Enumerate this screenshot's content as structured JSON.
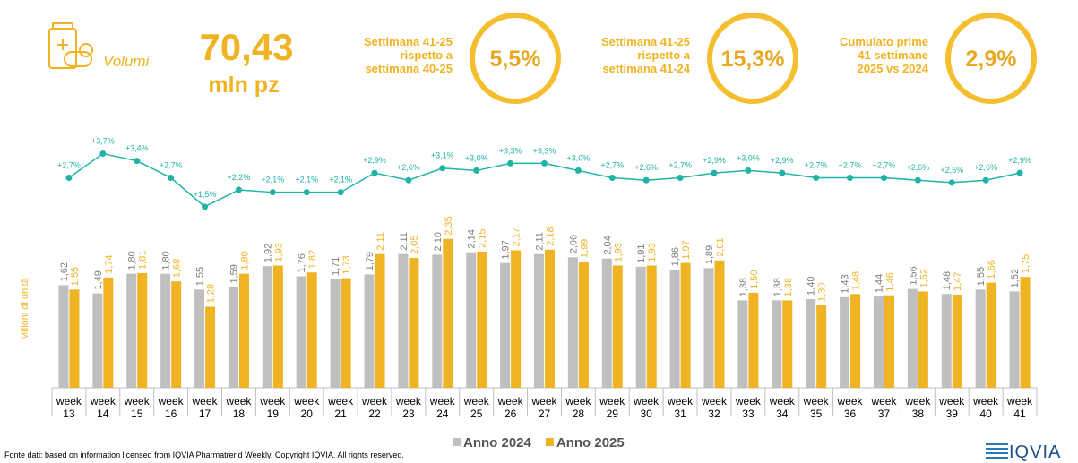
{
  "header": {
    "kpi": {
      "label": "Volumi",
      "value": "70,43",
      "unit": "mln pz"
    },
    "comparisons": [
      {
        "lines": [
          "Settimana 41-25",
          "rispetto a",
          "settimana 40-25"
        ],
        "value": "5,5%"
      },
      {
        "lines": [
          "Settimana 41-25",
          "rispetto a",
          "settimana 41-24"
        ],
        "value": "15,3%"
      },
      {
        "lines": [
          "Cumulato prime",
          "41 settimane",
          "2025 vs 2024"
        ],
        "value": "2,9%"
      }
    ]
  },
  "chart_data": {
    "type": "bar",
    "y_label": "Milioni di unità",
    "categories": [
      "week 13",
      "week 14",
      "week 15",
      "week 16",
      "week 17",
      "week 18",
      "week 19",
      "week 20",
      "week 21",
      "week 22",
      "week 23",
      "week 24",
      "week 25",
      "week 26",
      "week 27",
      "week 28",
      "week 29",
      "week 30",
      "week 31",
      "week 32",
      "week 33",
      "week 34",
      "week 35",
      "week 36",
      "week 37",
      "week 38",
      "week 39",
      "week 40",
      "week 41"
    ],
    "ylim": [
      0,
      4
    ],
    "y2lim": [
      -6,
      4.5
    ],
    "series": [
      {
        "name": "Anno 2024",
        "color": "#bfbfbf",
        "values": [
          1.62,
          1.49,
          1.8,
          1.8,
          1.55,
          1.59,
          1.92,
          1.76,
          1.71,
          1.79,
          2.11,
          2.1,
          2.14,
          1.97,
          2.11,
          2.06,
          2.04,
          1.91,
          1.86,
          1.89,
          1.38,
          1.38,
          1.4,
          1.43,
          1.44,
          1.56,
          1.48,
          1.55,
          1.52
        ],
        "value_labels": [
          "1,62",
          "1,49",
          "1,80",
          "1,80",
          "1,55",
          "1,59",
          "1,92",
          "1,76",
          "1,71",
          "1,79",
          "2,11",
          "2,10",
          "2,14",
          "1,97",
          "2,11",
          "2,06",
          "2,04",
          "1,91",
          "1,86",
          "1,89",
          "1,38",
          "1,38",
          "1,40",
          "1,43",
          "1,44",
          "1,56",
          "1,48",
          "1,55",
          "1,52"
        ]
      },
      {
        "name": "Anno 2025",
        "color": "#f0b323",
        "values": [
          1.55,
          1.74,
          1.81,
          1.68,
          1.28,
          1.8,
          1.93,
          1.82,
          1.73,
          2.11,
          2.05,
          2.35,
          2.15,
          2.17,
          2.18,
          1.99,
          1.93,
          1.93,
          1.97,
          2.01,
          1.5,
          1.38,
          1.3,
          1.48,
          1.46,
          1.52,
          1.47,
          1.66,
          1.75
        ],
        "value_labels": [
          "1,55",
          "1,74",
          "1,81",
          "1,68",
          "1,28",
          "1,80",
          "1,93",
          "1,82",
          "1,73",
          "2,11",
          "2,05",
          "2,35",
          "2,15",
          "2,17",
          "2,18",
          "1,99",
          "1,93",
          "1,93",
          "1,97",
          "2,01",
          "1,50",
          "1,38",
          "1,30",
          "1,48",
          "1,46",
          "1,52",
          "1,47",
          "1,66",
          "1,75"
        ]
      },
      {
        "type": "line",
        "axis": "y2",
        "color": "#1fb3a5",
        "values": [
          2.7,
          3.7,
          3.4,
          2.7,
          1.5,
          2.2,
          2.1,
          2.1,
          2.1,
          2.9,
          2.6,
          3.1,
          3.0,
          3.3,
          3.3,
          3.0,
          2.7,
          2.6,
          2.7,
          2.9,
          3.0,
          2.9,
          2.7,
          2.7,
          2.7,
          2.6,
          2.5,
          2.6,
          2.9
        ],
        "value_labels": [
          "+2,7%",
          "+3,7%",
          "+3,4%",
          "+2,7%",
          "+1,5%",
          "+2,2%",
          "+2,1%",
          "+2,1%",
          "+2,1%",
          "+2,9%",
          "+2,6%",
          "+3,1%",
          "+3,0%",
          "+3,3%",
          "+3,3%",
          "+3,0%",
          "+2,7%",
          "+2,6%",
          "+2,7%",
          "+2,9%",
          "+3,0%",
          "+2,9%",
          "+2,7%",
          "+2,7%",
          "+2,7%",
          "+2,6%",
          "+2,5%",
          "+2,6%",
          "+2,9%"
        ]
      }
    ]
  },
  "footer": {
    "source": "Fonte dati: based on information licensed from IQVIA Pharmatrend Weekly. Copyright IQVIA. All rights reserved.",
    "logo": "IQVIA"
  }
}
